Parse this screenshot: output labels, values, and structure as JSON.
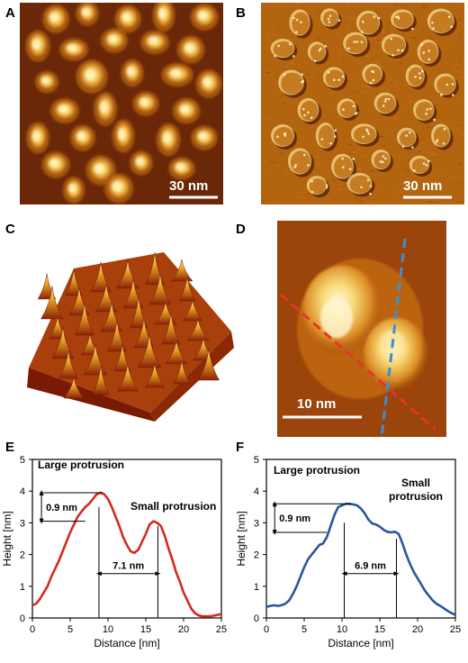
{
  "panels": {
    "a": {
      "label": "A",
      "scale_bar": "30 nm"
    },
    "b": {
      "label": "B",
      "scale_bar": "30 nm"
    },
    "c": {
      "label": "C"
    },
    "d": {
      "label": "D",
      "scale_bar": "10 nm"
    },
    "e": {
      "label": "E"
    },
    "f": {
      "label": "F"
    }
  },
  "colors": {
    "afm_dark": "#5a1e00",
    "afm_mid": "#b8620e",
    "afm_bright": "#ffe8a0",
    "profile_e": "#d42a1e",
    "profile_f": "#2a559e",
    "dash_red": "#e8332a",
    "dash_blue": "#3d8fd0"
  },
  "chart_data": [
    {
      "type": "line",
      "panel": "E",
      "xlabel": "Distance [nm]",
      "ylabel": "Height [nm]",
      "xlim": [
        0,
        25
      ],
      "ylim": [
        0,
        5
      ],
      "xticks": [
        0,
        5,
        10,
        15,
        20,
        25
      ],
      "yticks": [
        0,
        1,
        2,
        3,
        4,
        5
      ],
      "series": [
        {
          "x": [
            0,
            0.5,
            1,
            1.5,
            2,
            2.5,
            3,
            3.5,
            4,
            4.5,
            5,
            5.5,
            6,
            6.5,
            7,
            7.5,
            8,
            8.5,
            9,
            9.5,
            10,
            10.5,
            11,
            11.5,
            12,
            12.5,
            13,
            13.5,
            14,
            14.5,
            15,
            15.5,
            16,
            16.5,
            17,
            17.5,
            18,
            18.5,
            19,
            19.5,
            20,
            20.5,
            21,
            21.5,
            22,
            22.5,
            23,
            23.5,
            24,
            24.5,
            25
          ],
          "y": [
            0.4,
            0.45,
            0.6,
            0.8,
            1.0,
            1.3,
            1.55,
            1.8,
            2.1,
            2.4,
            2.7,
            2.95,
            3.2,
            3.35,
            3.5,
            3.6,
            3.75,
            3.9,
            3.95,
            3.9,
            3.75,
            3.5,
            3.2,
            2.9,
            2.55,
            2.3,
            2.1,
            2.05,
            2.15,
            2.4,
            2.65,
            2.95,
            3.05,
            3.0,
            2.9,
            2.6,
            2.2,
            1.85,
            1.45,
            1.15,
            0.8,
            0.55,
            0.3,
            0.15,
            0.08,
            0.05,
            0.05,
            0.05,
            0.07,
            0.1,
            0.12
          ]
        }
      ],
      "annotations": {
        "large": "Large protrusion",
        "small": "Small protrusion",
        "height_diff": "0.9 nm",
        "distance": "7.1 nm"
      }
    },
    {
      "type": "line",
      "panel": "F",
      "xlabel": "Distance [nm]",
      "ylabel": "Height [nm]",
      "xlim": [
        0,
        25
      ],
      "ylim": [
        0,
        5
      ],
      "xticks": [
        0,
        5,
        10,
        15,
        20,
        25
      ],
      "yticks": [
        0,
        1,
        2,
        3,
        4,
        5
      ],
      "series": [
        {
          "x": [
            0,
            0.5,
            1,
            1.5,
            2,
            2.5,
            3,
            3.5,
            4,
            4.5,
            5,
            5.5,
            6,
            6.5,
            7,
            7.5,
            8,
            8.5,
            9,
            9.5,
            10,
            10.5,
            11,
            11.5,
            12,
            12.5,
            13,
            13.5,
            14,
            14.5,
            15,
            15.5,
            16,
            16.5,
            17,
            17.5,
            18,
            18.5,
            19,
            19.5,
            20,
            20.5,
            21,
            21.5,
            22,
            22.5,
            23,
            23.5,
            24,
            24.5,
            25
          ],
          "y": [
            0.35,
            0.38,
            0.4,
            0.38,
            0.4,
            0.45,
            0.55,
            0.75,
            1.0,
            1.3,
            1.6,
            1.85,
            2.0,
            2.15,
            2.3,
            2.35,
            2.55,
            2.9,
            3.25,
            3.5,
            3.55,
            3.6,
            3.6,
            3.58,
            3.55,
            3.45,
            3.3,
            3.1,
            2.98,
            2.95,
            2.88,
            2.78,
            2.72,
            2.7,
            2.72,
            2.65,
            2.35,
            2.0,
            1.7,
            1.45,
            1.25,
            1.05,
            0.85,
            0.7,
            0.55,
            0.45,
            0.38,
            0.3,
            0.22,
            0.15,
            0.1
          ]
        }
      ],
      "annotations": {
        "large": "Large protrusion",
        "small_1": "Small",
        "small_2": "protrusion",
        "height_diff": "0.9 nm",
        "distance": "6.9 nm"
      }
    }
  ]
}
